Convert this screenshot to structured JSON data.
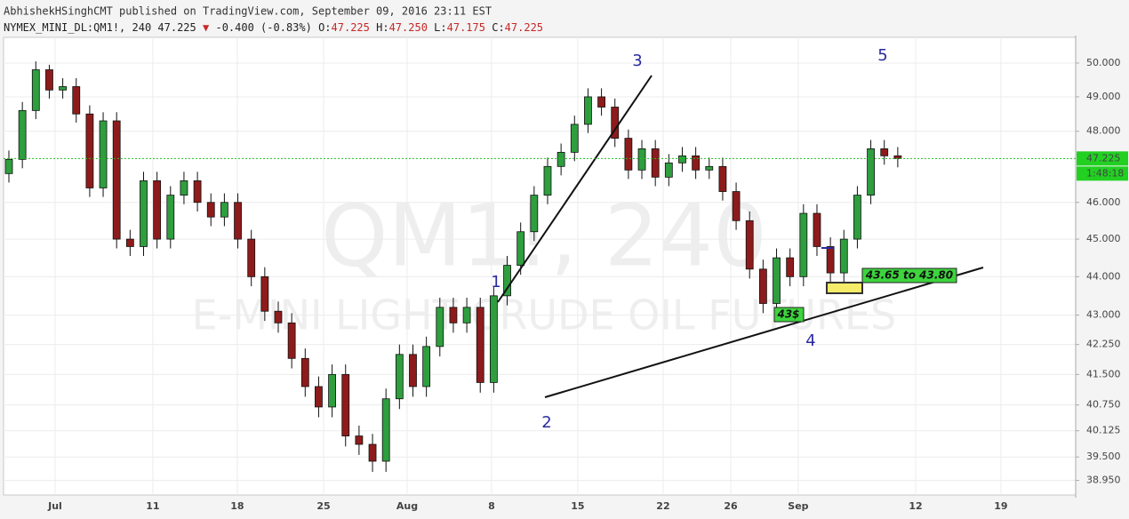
{
  "header": {
    "author_line": "AbhishekHSinghCMT published on TradingView.com, September 09, 2016 23:11 EST",
    "symbol": "NYMEX_MINI_DL:QM1!, 240",
    "last": "47.225",
    "arrow": "▼",
    "change": "-0.400 (-0.83%)",
    "ohlc": [
      {
        "label": "O:",
        "value": "47.225"
      },
      {
        "label": "H:",
        "value": "47.250"
      },
      {
        "label": "L:",
        "value": "47.175"
      },
      {
        "label": "C:",
        "value": "47.225"
      }
    ]
  },
  "chart_data": {
    "type": "candlestick",
    "watermark": {
      "symbol": "QM1!, 240",
      "description": "E-MINI LIGHT CRUDE OIL FUTURES"
    },
    "up_color": "#2e9e3e",
    "down_color": "#8e1b1b",
    "log": true,
    "grid": true,
    "open": [
      46.8,
      47.2,
      48.6,
      49.8,
      49.2,
      49.3,
      48.5,
      46.4,
      48.3,
      45.0,
      44.8,
      46.6,
      45.0,
      46.2,
      46.6,
      46.0,
      45.6,
      46.0,
      45.0,
      44.0,
      43.1,
      42.8,
      41.9,
      41.2,
      40.7,
      41.5,
      40.0,
      39.8,
      39.4,
      40.9,
      42.0,
      41.2,
      42.2,
      43.2,
      42.8,
      43.2,
      41.3,
      43.5,
      44.3,
      45.2,
      46.2,
      47.0,
      47.4,
      48.2,
      49.0,
      48.7,
      47.8,
      46.9,
      47.5,
      46.7,
      47.1,
      47.3,
      46.9,
      47.0,
      46.3,
      45.5,
      44.2,
      43.3,
      44.5,
      44.0,
      45.7,
      44.8,
      44.1,
      45.0,
      46.2,
      47.5,
      47.3
    ],
    "high": [
      47.45,
      48.85,
      50.05,
      49.95,
      49.55,
      49.55,
      48.75,
      48.55,
      48.55,
      45.25,
      46.85,
      46.85,
      46.45,
      46.85,
      46.85,
      46.25,
      46.25,
      46.25,
      45.25,
      44.25,
      43.35,
      43.05,
      42.15,
      41.45,
      41.75,
      41.75,
      40.25,
      40.05,
      41.15,
      42.25,
      42.25,
      42.45,
      43.45,
      43.45,
      43.45,
      43.45,
      43.75,
      44.55,
      45.45,
      46.45,
      47.25,
      47.65,
      48.45,
      49.25,
      49.25,
      48.95,
      48.05,
      47.75,
      47.75,
      47.35,
      47.55,
      47.55,
      47.25,
      47.25,
      46.55,
      45.75,
      44.45,
      44.75,
      44.75,
      45.95,
      45.95,
      45.05,
      45.25,
      46.45,
      47.75,
      47.75,
      47.55
    ],
    "low": [
      46.55,
      46.95,
      48.35,
      48.95,
      48.95,
      48.25,
      46.15,
      46.15,
      44.75,
      44.55,
      44.55,
      44.75,
      44.75,
      45.95,
      45.75,
      45.35,
      45.35,
      44.75,
      43.75,
      42.85,
      42.55,
      41.65,
      40.95,
      40.45,
      40.45,
      39.75,
      39.55,
      39.15,
      39.15,
      40.65,
      40.95,
      40.95,
      41.95,
      42.55,
      42.55,
      41.05,
      41.05,
      43.25,
      44.05,
      44.95,
      45.95,
      46.75,
      47.15,
      47.95,
      48.45,
      47.55,
      46.65,
      46.65,
      46.45,
      46.45,
      46.85,
      46.65,
      46.65,
      46.05,
      45.25,
      43.95,
      43.05,
      43.05,
      43.75,
      43.75,
      44.55,
      43.85,
      43.85,
      44.75,
      45.95,
      47.05,
      46.975
    ],
    "close": [
      47.2,
      48.6,
      49.8,
      49.2,
      49.3,
      48.5,
      46.4,
      48.3,
      45.0,
      44.8,
      46.6,
      45.0,
      46.2,
      46.6,
      46.0,
      45.6,
      46.0,
      45.0,
      44.0,
      43.1,
      42.8,
      41.9,
      41.2,
      40.7,
      41.5,
      40.0,
      39.8,
      39.4,
      40.9,
      42.0,
      41.2,
      42.2,
      43.2,
      42.8,
      43.2,
      41.3,
      43.5,
      44.3,
      45.2,
      46.2,
      47.0,
      47.4,
      48.2,
      49.0,
      48.7,
      47.8,
      46.9,
      47.5,
      46.7,
      47.1,
      47.3,
      46.9,
      47.0,
      46.3,
      45.5,
      44.2,
      43.3,
      44.5,
      44.0,
      45.7,
      44.8,
      44.1,
      45.0,
      46.2,
      47.5,
      47.3,
      47.225
    ],
    "xlim": [
      -0.66,
      79.21
    ],
    "xticks": [
      {
        "value": 3.43,
        "label": "Jul"
      },
      {
        "value": 10.69,
        "label": "11"
      },
      {
        "value": 16.96,
        "label": "18"
      },
      {
        "value": 23.37,
        "label": "25"
      },
      {
        "value": 29.57,
        "label": "Aug"
      },
      {
        "value": 35.84,
        "label": "8"
      },
      {
        "value": 42.24,
        "label": "15"
      },
      {
        "value": 48.58,
        "label": "22"
      },
      {
        "value": 53.6,
        "label": "26"
      },
      {
        "value": 58.61,
        "label": "Sep"
      },
      {
        "value": 67.33,
        "label": "12"
      },
      {
        "value": 73.66,
        "label": "19"
      }
    ],
    "ylim": [
      38.55,
      50.83
    ],
    "yticks": [
      {
        "value": 50,
        "label": "50.000"
      },
      {
        "value": 49,
        "label": "49.000"
      },
      {
        "value": 48,
        "label": "48.000"
      },
      {
        "value": 46,
        "label": "46.000"
      },
      {
        "value": 45,
        "label": "45.000"
      },
      {
        "value": 44,
        "label": "44.000"
      },
      {
        "value": 43,
        "label": "43.000"
      },
      {
        "value": 42.25,
        "label": "42.250"
      },
      {
        "value": 41.5,
        "label": "41.500"
      },
      {
        "value": 40.75,
        "label": "40.750"
      },
      {
        "value": 40.125,
        "label": "40.125"
      },
      {
        "value": 39.5,
        "label": "39.500"
      },
      {
        "value": 38.95,
        "label": "38.950"
      }
    ],
    "last_price": {
      "value": 47.225,
      "label": "47.225"
    },
    "countdown": "1:48:18",
    "annotations": [
      "1",
      "2",
      "3",
      "4",
      "5",
      "43$",
      "43.65 to 43.80"
    ]
  }
}
